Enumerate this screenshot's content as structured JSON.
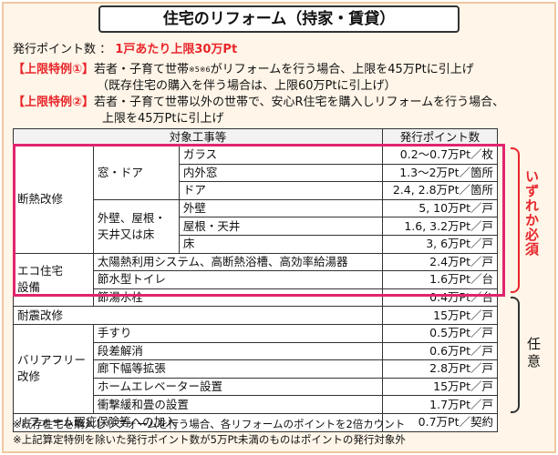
{
  "title": "住宅のリフォーム（持家・賃貸）",
  "issue": {
    "label": "発行ポイント数 ：",
    "value": "1戸あたり上限30万Pt"
  },
  "special1": {
    "tag": "【上限特例①】",
    "text_a": "若者・子育て世帯",
    "sup": "※5※6",
    "text_b": "がリフォームを行う場合、上限を45万Ptに引上げ",
    "sub": "（既存住宅の購入を伴う場合は、上限60万Ptに引上げ）"
  },
  "special2": {
    "tag": "【上限特例②】",
    "text": "若者・子育て世帯以外の世帯で、安心R住宅を購入しリフォームを行う場合、",
    "text2": "上限を45万Ptに引上げ"
  },
  "table": {
    "head_work": "対象工事等",
    "head_points": "発行ポイント数",
    "insulation": "断熱改修",
    "window_door": "窓・ドア",
    "glass": "ガラス",
    "glass_pt": "0.2～0.7万Pt／枚",
    "inner_window": "内外窓",
    "inner_window_pt": "1.3～2万Pt／箇所",
    "door": "ドア",
    "door_pt": "2.4, 2.8万Pt／箇所",
    "wall_group_1": "外壁、屋根・",
    "wall_group_2": "天井又は床",
    "outer_wall": "外壁",
    "outer_wall_pt": "5, 10万Pt／戸",
    "roof": "屋根・天井",
    "roof_pt": "1.6, 3.2万Pt／戸",
    "floor": "床",
    "floor_pt": "3, 6万Pt／戸",
    "eco_1": "エコ住宅",
    "eco_2": "設備",
    "solar": "太陽熱利用システム、高断熱浴槽、高効率給湯器",
    "solar_pt": "2.4万Pt／戸",
    "toilet": "節水型トイレ",
    "toilet_pt": "1.6万Pt／台",
    "faucet": "節湯水栓",
    "faucet_pt": "0.4万Pt／台",
    "seismic": "耐震改修",
    "seismic_pt": "15万Pt／戸",
    "barrier_1": "バリアフリー",
    "barrier_2": "改修",
    "handrail": "手すり",
    "handrail_pt": "0.5万Pt／戸",
    "step": "段差解消",
    "step_pt": "0.6万Pt／戸",
    "corridor": "廊下幅等拡張",
    "corridor_pt": "2.8万Pt／戸",
    "elevator": "ホームエレベーター設置",
    "elevator_pt": "15万Pt／戸",
    "shock": "衝撃緩和畳の設置",
    "shock_pt": "1.7万Pt／戸",
    "insurance": "リフォーム瑕疵保険等への加入",
    "insurance_pt": "0.7万Pt／契約"
  },
  "side_required": "いずれか必須",
  "side_optional": "任意",
  "notes": [
    "※既存住宅を購入しリフォームを行う場合、各リフォームのポイントを2倍カウント",
    "※上記算定特例を除いた発行ポイント数が5万Pt未満のものはポイントの発行対象外"
  ],
  "colors": {
    "accent_red": "#e8262b",
    "highlight_pink": "#e0256e",
    "background": "#fff5e8"
  }
}
